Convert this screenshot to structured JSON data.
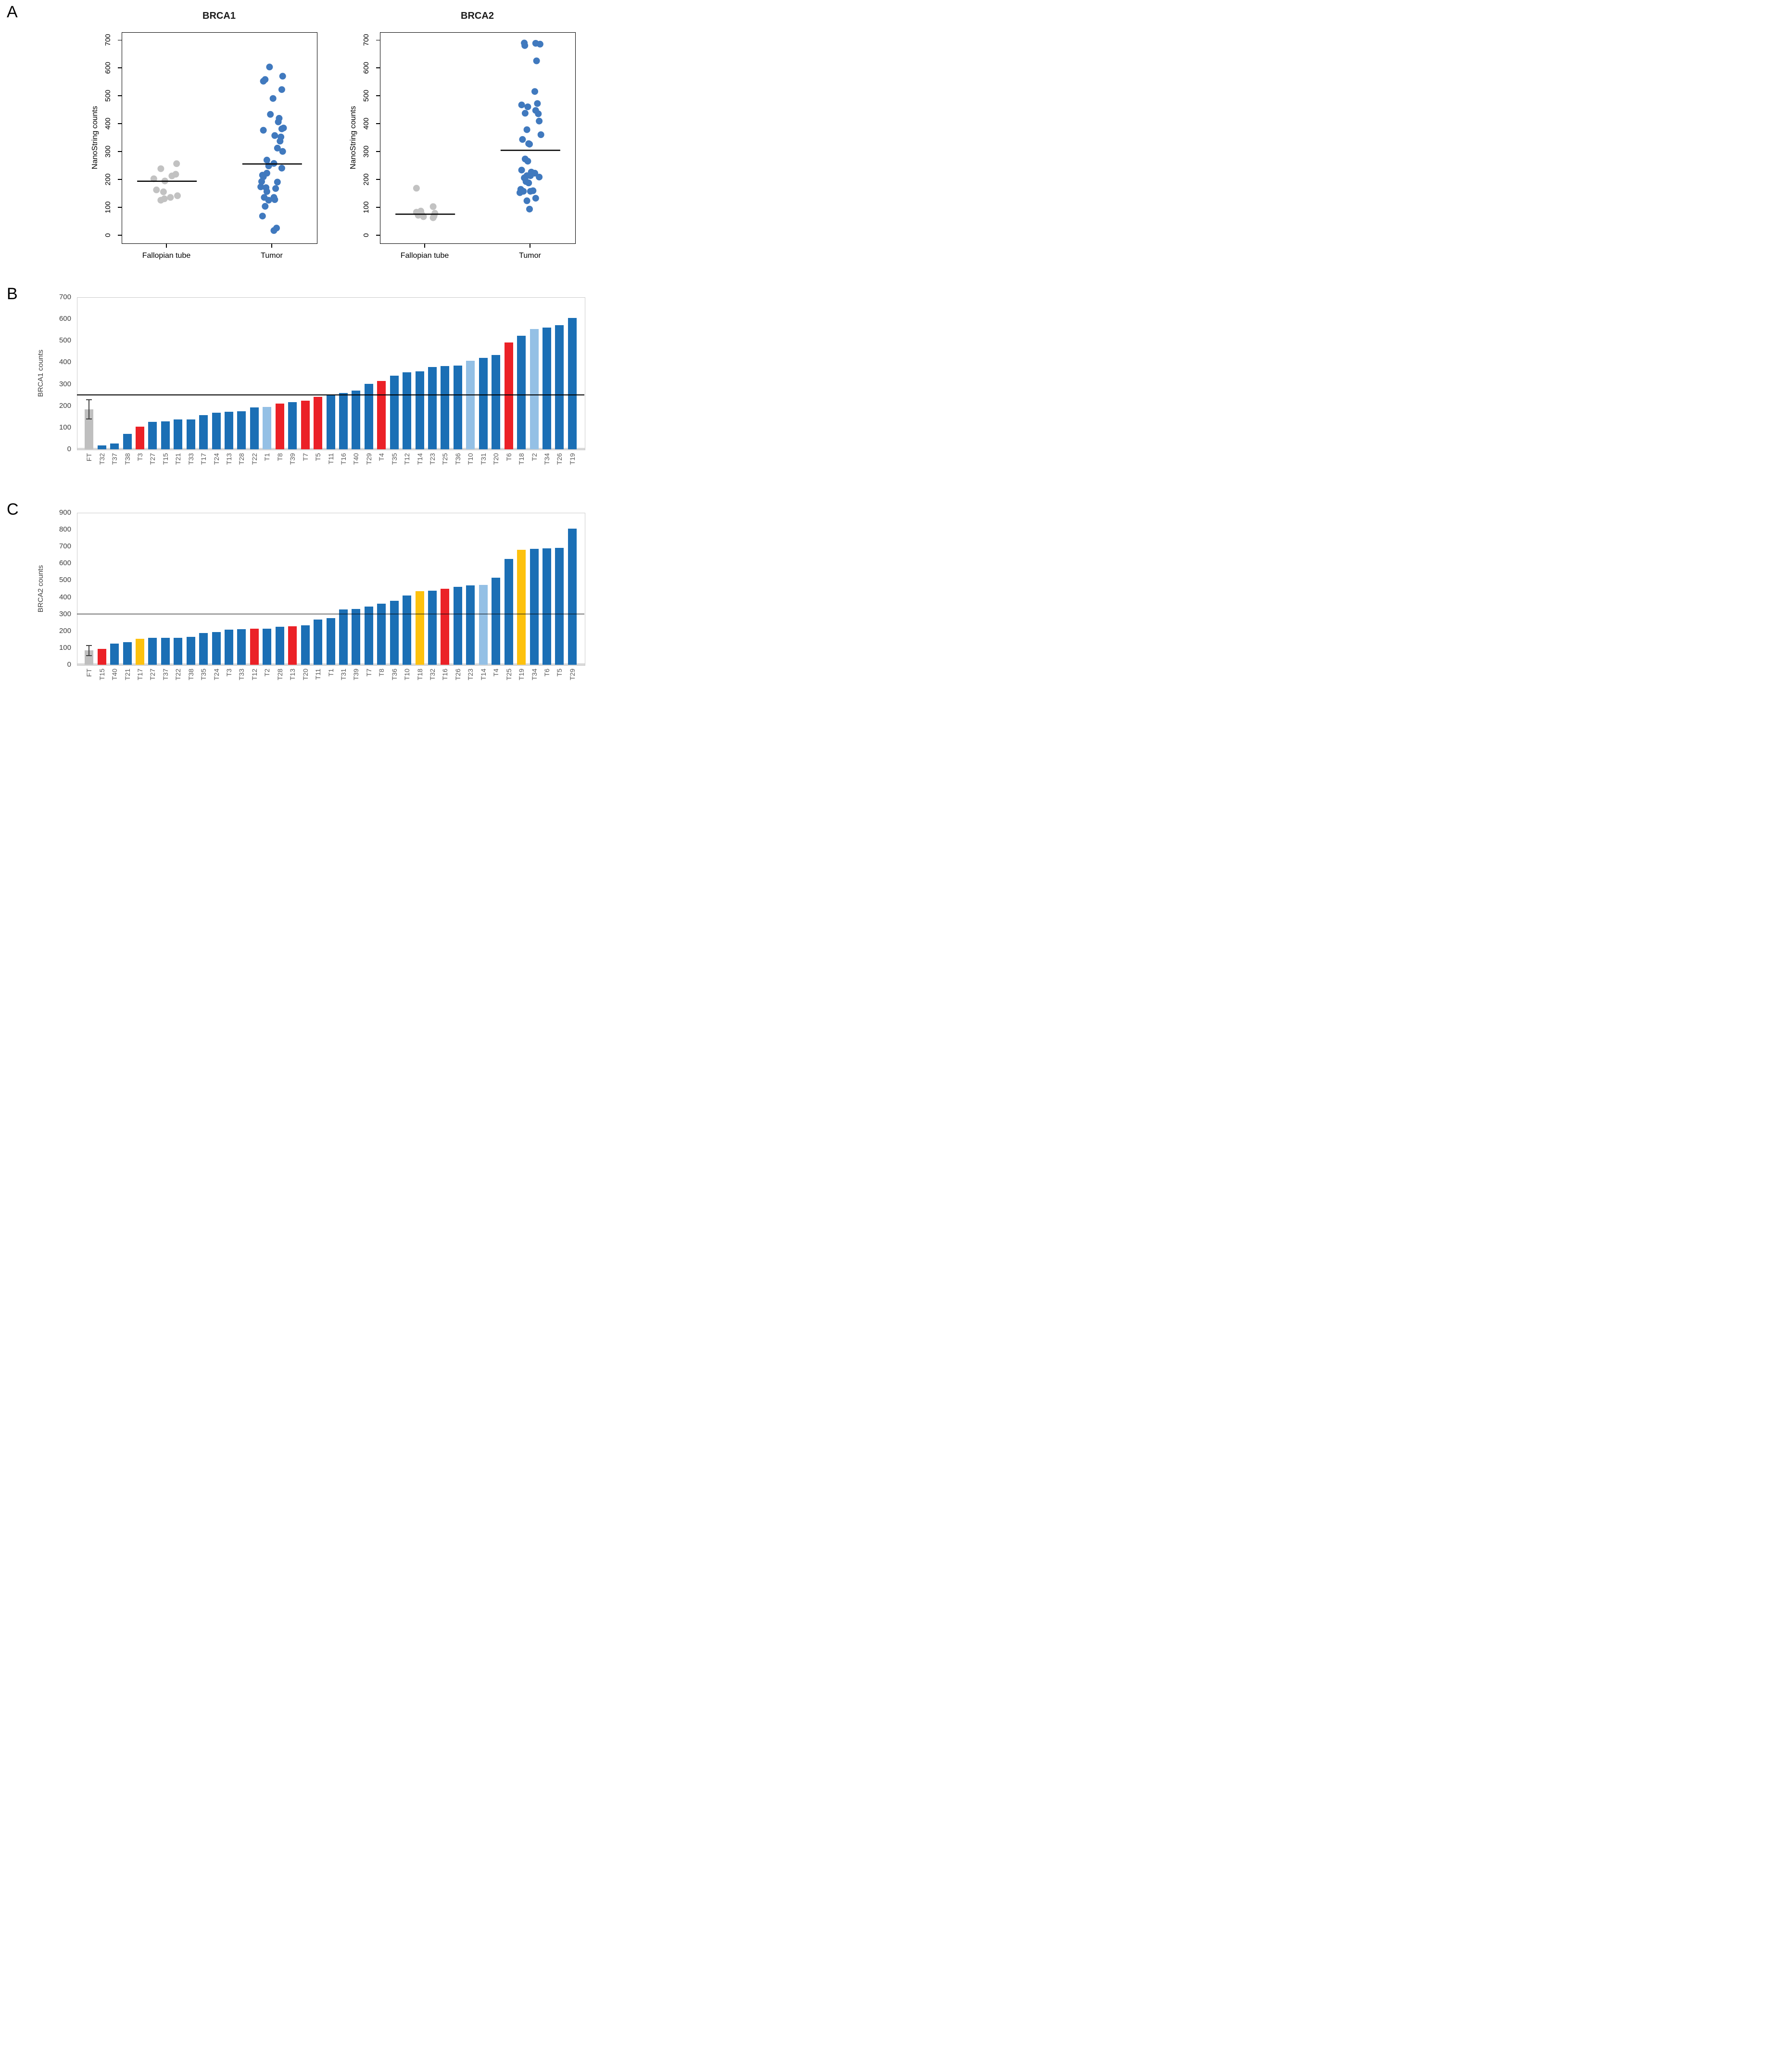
{
  "figure": {
    "panels": {
      "a": "A",
      "b": "B",
      "c": "C"
    }
  },
  "colors": {
    "bar_blue": "#1B6FB5",
    "bar_light_blue": "#94C0E5",
    "bar_red": "#EB2127",
    "bar_orange": "#FDC10D",
    "bar_gray": "#BFBFBF",
    "dot_blue": "#4079BE",
    "dot_gray": "#C2C2C2",
    "ref_line": "#000000",
    "error_bar": "#404040"
  },
  "chart_data": [
    {
      "type": "scatter",
      "id": "brca1-scatter",
      "title": "BRCA1",
      "ylabel": "NanoString counts",
      "ylim": [
        0,
        700
      ],
      "yticks": [
        0,
        100,
        200,
        300,
        400,
        500,
        600,
        700
      ],
      "categories": [
        "Fallopian tube",
        "Tumor"
      ],
      "groups": [
        {
          "name": "Fallopian tube",
          "color_key": "dot_gray",
          "median": 195,
          "values": [
            258,
            240,
            220,
            214,
            204,
            196,
            164,
            157,
            143,
            137,
            132,
            127
          ],
          "jitter": [
            0.55,
            -0.35,
            0.5,
            0.28,
            -0.75,
            -0.12,
            -0.6,
            -0.2,
            0.6,
            0.2,
            -0.15,
            -0.35
          ]
        },
        {
          "name": "Tumor",
          "color_key": "dot_blue",
          "median": 257,
          "values": [
            605,
            572,
            560,
            554,
            524,
            492,
            435,
            421,
            408,
            386,
            383,
            378,
            359,
            354,
            339,
            314,
            302,
            271,
            259,
            250,
            242,
            224,
            217,
            211,
            194,
            192,
            175,
            172,
            169,
            158,
            137,
            137,
            129,
            127,
            105,
            70,
            27,
            18
          ],
          "jitter": [
            -0.15,
            0.6,
            -0.4,
            -0.5,
            0.55,
            0.05,
            -0.1,
            0.4,
            0.35,
            0.65,
            0.55,
            -0.5,
            0.15,
            0.5,
            0.45,
            0.3,
            0.6,
            -0.3,
            0.1,
            -0.2,
            0.55,
            -0.3,
            -0.55,
            -0.5,
            -0.6,
            0.3,
            -0.65,
            -0.35,
            0.2,
            -0.3,
            -0.45,
            0.1,
            0.15,
            -0.2,
            -0.4,
            -0.55,
            0.25,
            0.1
          ]
        }
      ]
    },
    {
      "type": "scatter",
      "id": "brca2-scatter",
      "title": "BRCA2",
      "ylabel": "NanoString counts",
      "ylim": [
        0,
        700
      ],
      "yticks": [
        0,
        100,
        200,
        300,
        400,
        500,
        600,
        700
      ],
      "categories": [
        "Fallopian tube",
        "Tumor"
      ],
      "groups": [
        {
          "name": "Fallopian tube",
          "color_key": "dot_gray",
          "median": 77,
          "values": [
            170,
            104,
            88,
            84,
            80,
            76,
            73,
            70,
            68,
            64
          ],
          "jitter": [
            -0.5,
            0.45,
            -0.25,
            -0.5,
            0.55,
            -0.2,
            -0.4,
            0.5,
            -0.1,
            0.45
          ]
        },
        {
          "name": "Tumor",
          "color_key": "dot_blue",
          "median": 306,
          "values": [
            807,
            691,
            690,
            687,
            682,
            627,
            517,
            474,
            469,
            462,
            449,
            439,
            437,
            411,
            380,
            362,
            345,
            330,
            328,
            275,
            267,
            235,
            228,
            224,
            215,
            215,
            210,
            207,
            194,
            189,
            166,
            161,
            159,
            159,
            154,
            134,
            125,
            95
          ],
          "jitter": [
            0,
            -0.35,
            0.3,
            0.55,
            -0.32,
            0.35,
            0.25,
            0.4,
            -0.5,
            -0.15,
            0.3,
            -0.3,
            0.45,
            0.5,
            -0.2,
            0.6,
            -0.45,
            -0.1,
            -0.05,
            -0.3,
            -0.15,
            -0.5,
            0.05,
            0.25,
            -0.2,
            0,
            0.5,
            -0.35,
            -0.25,
            -0.1,
            -0.55,
            0.15,
            -0.4,
            0,
            -0.6,
            0.3,
            -0.2,
            -0.05
          ]
        }
      ]
    },
    {
      "type": "bar",
      "id": "brca1-bars",
      "ylabel": "BRCA1 counts",
      "ylim": [
        0,
        700
      ],
      "yticks": [
        0,
        100,
        200,
        300,
        400,
        500,
        600,
        700
      ],
      "ref_line": 250,
      "bars": [
        {
          "label": "FT",
          "value": 185,
          "color_key": "bar_gray",
          "error": [
            140,
            228
          ]
        },
        {
          "label": "T32",
          "value": 18,
          "color_key": "bar_blue"
        },
        {
          "label": "T37",
          "value": 27,
          "color_key": "bar_blue"
        },
        {
          "label": "T38",
          "value": 70,
          "color_key": "bar_blue"
        },
        {
          "label": "T3",
          "value": 105,
          "color_key": "bar_red"
        },
        {
          "label": "T27",
          "value": 127,
          "color_key": "bar_blue"
        },
        {
          "label": "T15",
          "value": 129,
          "color_key": "bar_blue"
        },
        {
          "label": "T21",
          "value": 137,
          "color_key": "bar_blue"
        },
        {
          "label": "T33",
          "value": 137,
          "color_key": "bar_blue"
        },
        {
          "label": "T17",
          "value": 158,
          "color_key": "bar_blue"
        },
        {
          "label": "T24",
          "value": 169,
          "color_key": "bar_blue"
        },
        {
          "label": "T13",
          "value": 172,
          "color_key": "bar_blue"
        },
        {
          "label": "T28",
          "value": 175,
          "color_key": "bar_blue"
        },
        {
          "label": "T22",
          "value": 192,
          "color_key": "bar_blue"
        },
        {
          "label": "T1",
          "value": 194,
          "color_key": "bar_light_blue"
        },
        {
          "label": "T8",
          "value": 211,
          "color_key": "bar_red"
        },
        {
          "label": "T39",
          "value": 217,
          "color_key": "bar_blue"
        },
        {
          "label": "T7",
          "value": 224,
          "color_key": "bar_red"
        },
        {
          "label": "T5",
          "value": 242,
          "color_key": "bar_red"
        },
        {
          "label": "T11",
          "value": 250,
          "color_key": "bar_blue"
        },
        {
          "label": "T16",
          "value": 259,
          "color_key": "bar_blue"
        },
        {
          "label": "T40",
          "value": 271,
          "color_key": "bar_blue"
        },
        {
          "label": "T29",
          "value": 302,
          "color_key": "bar_blue"
        },
        {
          "label": "T4",
          "value": 314,
          "color_key": "bar_red"
        },
        {
          "label": "T35",
          "value": 339,
          "color_key": "bar_blue"
        },
        {
          "label": "T12",
          "value": 354,
          "color_key": "bar_blue"
        },
        {
          "label": "T14",
          "value": 359,
          "color_key": "bar_blue"
        },
        {
          "label": "T23",
          "value": 378,
          "color_key": "bar_blue"
        },
        {
          "label": "T25",
          "value": 383,
          "color_key": "bar_blue"
        },
        {
          "label": "T36",
          "value": 386,
          "color_key": "bar_blue"
        },
        {
          "label": "T10",
          "value": 408,
          "color_key": "bar_light_blue"
        },
        {
          "label": "T31",
          "value": 421,
          "color_key": "bar_blue"
        },
        {
          "label": "T20",
          "value": 435,
          "color_key": "bar_blue"
        },
        {
          "label": "T6",
          "value": 492,
          "color_key": "bar_red"
        },
        {
          "label": "T18",
          "value": 524,
          "color_key": "bar_blue"
        },
        {
          "label": "T2",
          "value": 554,
          "color_key": "bar_light_blue"
        },
        {
          "label": "T34",
          "value": 560,
          "color_key": "bar_blue"
        },
        {
          "label": "T26",
          "value": 572,
          "color_key": "bar_blue"
        },
        {
          "label": "T19",
          "value": 605,
          "color_key": "bar_blue"
        }
      ]
    },
    {
      "type": "bar",
      "id": "brca2-bars",
      "ylabel": "BRCA2 counts",
      "ylim": [
        0,
        900
      ],
      "yticks": [
        0,
        100,
        200,
        300,
        400,
        500,
        600,
        700,
        800,
        900
      ],
      "ref_line": 300,
      "bars": [
        {
          "label": "FT",
          "value": 85,
          "color_key": "bar_gray",
          "error": [
            55,
            113
          ]
        },
        {
          "label": "T15",
          "value": 95,
          "color_key": "bar_red"
        },
        {
          "label": "T40",
          "value": 125,
          "color_key": "bar_blue"
        },
        {
          "label": "T21",
          "value": 134,
          "color_key": "bar_blue"
        },
        {
          "label": "T17",
          "value": 154,
          "color_key": "bar_orange"
        },
        {
          "label": "T27",
          "value": 159,
          "color_key": "bar_blue"
        },
        {
          "label": "T37",
          "value": 159,
          "color_key": "bar_blue"
        },
        {
          "label": "T22",
          "value": 161,
          "color_key": "bar_blue"
        },
        {
          "label": "T38",
          "value": 166,
          "color_key": "bar_blue"
        },
        {
          "label": "T35",
          "value": 189,
          "color_key": "bar_blue"
        },
        {
          "label": "T24",
          "value": 194,
          "color_key": "bar_blue"
        },
        {
          "label": "T3",
          "value": 207,
          "color_key": "bar_blue"
        },
        {
          "label": "T33",
          "value": 210,
          "color_key": "bar_blue"
        },
        {
          "label": "T12",
          "value": 215,
          "color_key": "bar_red"
        },
        {
          "label": "T2",
          "value": 215,
          "color_key": "bar_blue"
        },
        {
          "label": "T28",
          "value": 224,
          "color_key": "bar_blue"
        },
        {
          "label": "T13",
          "value": 228,
          "color_key": "bar_red"
        },
        {
          "label": "T20",
          "value": 235,
          "color_key": "bar_blue"
        },
        {
          "label": "T11",
          "value": 267,
          "color_key": "bar_blue"
        },
        {
          "label": "T1",
          "value": 275,
          "color_key": "bar_blue"
        },
        {
          "label": "T31",
          "value": 328,
          "color_key": "bar_blue"
        },
        {
          "label": "T39",
          "value": 330,
          "color_key": "bar_blue"
        },
        {
          "label": "T7",
          "value": 345,
          "color_key": "bar_blue"
        },
        {
          "label": "T8",
          "value": 362,
          "color_key": "bar_blue"
        },
        {
          "label": "T36",
          "value": 380,
          "color_key": "bar_blue"
        },
        {
          "label": "T10",
          "value": 411,
          "color_key": "bar_blue"
        },
        {
          "label": "T18",
          "value": 437,
          "color_key": "bar_orange"
        },
        {
          "label": "T32",
          "value": 439,
          "color_key": "bar_blue"
        },
        {
          "label": "T16",
          "value": 449,
          "color_key": "bar_red"
        },
        {
          "label": "T26",
          "value": 462,
          "color_key": "bar_blue"
        },
        {
          "label": "T23",
          "value": 469,
          "color_key": "bar_blue"
        },
        {
          "label": "T14",
          "value": 474,
          "color_key": "bar_light_blue"
        },
        {
          "label": "T4",
          "value": 517,
          "color_key": "bar_blue"
        },
        {
          "label": "T25",
          "value": 627,
          "color_key": "bar_blue"
        },
        {
          "label": "T19",
          "value": 682,
          "color_key": "bar_orange"
        },
        {
          "label": "T34",
          "value": 687,
          "color_key": "bar_blue"
        },
        {
          "label": "T6",
          "value": 690,
          "color_key": "bar_blue"
        },
        {
          "label": "T5",
          "value": 691,
          "color_key": "bar_blue"
        },
        {
          "label": "T29",
          "value": 807,
          "color_key": "bar_blue"
        }
      ]
    }
  ]
}
